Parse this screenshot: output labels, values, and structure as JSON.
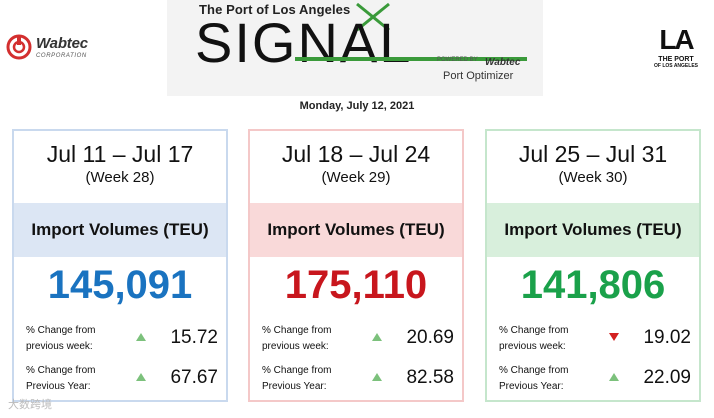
{
  "header": {
    "left_logo": {
      "name": "Wabtec",
      "sub": "CORPORATION",
      "color": "#d32f2f"
    },
    "banner": {
      "port_line": "The Port of Los Angeles",
      "title": "SIGNAL",
      "powered": "POWERED BY",
      "brand": "Wabtec",
      "product": "Port Optimizer"
    },
    "right_logo": {
      "big": "LA",
      "line1": "THE PORT",
      "line2": "OF LOS ANGELES"
    },
    "date": "Monday, July 12, 2021"
  },
  "cards": [
    {
      "range": "Jul 11 – Jul 17",
      "week": "(Week 28)",
      "metric": "Import Volumes (TEU)",
      "value": "145,091",
      "value_color": "#1a73c0",
      "rows": [
        {
          "label": "% Change from previous week:",
          "direction": "up",
          "value": "15.72"
        },
        {
          "label": "% Change from Previous Year:",
          "direction": "up",
          "value": "67.67"
        }
      ]
    },
    {
      "range": "Jul 18 – Jul 24",
      "week": "(Week 29)",
      "metric": "Import Volumes (TEU)",
      "value": "175,110",
      "value_color": "#c8161d",
      "rows": [
        {
          "label": "% Change from previous week:",
          "direction": "up",
          "value": "20.69"
        },
        {
          "label": "% Change from Previous Year:",
          "direction": "up",
          "value": "82.58"
        }
      ]
    },
    {
      "range": "Jul 25 – Jul 31",
      "week": "(Week 30)",
      "metric": "Import Volumes (TEU)",
      "value": "141,806",
      "value_color": "#1aa14a",
      "rows": [
        {
          "label": "% Change from previous week:",
          "direction": "down",
          "value": "19.02"
        },
        {
          "label": "% Change from Previous Year:",
          "direction": "up",
          "value": "22.09"
        }
      ]
    }
  ],
  "arrow_colors": {
    "up": "#7cc17c",
    "down": "#d32020"
  },
  "watermark": "大数跨境"
}
